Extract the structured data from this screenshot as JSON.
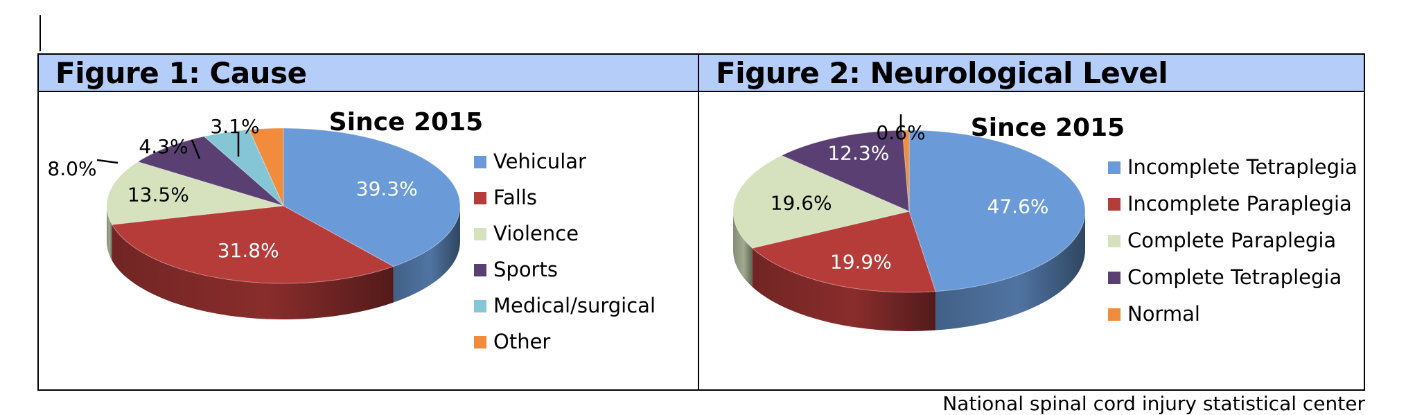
{
  "figures": {
    "left": {
      "header": "Figure 1: Cause"
    },
    "right": {
      "header": "Figure 2: Neurological Level"
    }
  },
  "source": "National spinal cord injury statistical center",
  "chart_data": [
    {
      "type": "pie",
      "title": "Since 2015",
      "legend_position": "right",
      "categories": [
        "Vehicular",
        "Falls",
        "Violence",
        "Sports",
        "Medical/surgical",
        "Other"
      ],
      "values": [
        39.3,
        31.8,
        13.5,
        8.0,
        4.3,
        3.1
      ],
      "labels": [
        "39.3%",
        "31.8%",
        "13.5%",
        "8.0%",
        "4.3%",
        "3.1%"
      ],
      "colors": [
        "#6a9bd8",
        "#b63c3a",
        "#d6e2bd",
        "#5a4072",
        "#84c6d6",
        "#f08c3c"
      ]
    },
    {
      "type": "pie",
      "title": "Since 2015",
      "legend_position": "right",
      "categories": [
        "Incomplete Tetraplegia",
        "Incomplete Paraplegia",
        "Complete Paraplegia",
        "Complete Tetraplegia",
        "Normal"
      ],
      "values": [
        47.6,
        19.9,
        19.6,
        12.3,
        0.6
      ],
      "labels": [
        "47.6%",
        "19.9%",
        "19.6%",
        "12.3%",
        "0.6%"
      ],
      "colors": [
        "#6a9bd8",
        "#b63c3a",
        "#d6e2bd",
        "#5a4072",
        "#f08c3c"
      ]
    }
  ]
}
